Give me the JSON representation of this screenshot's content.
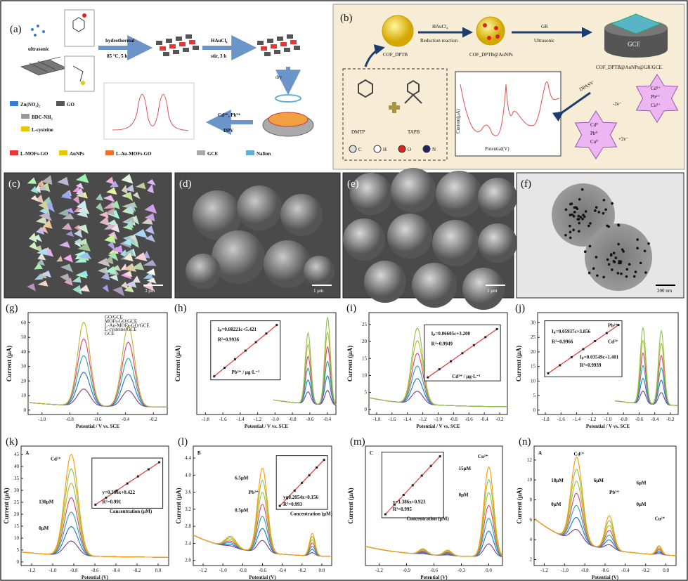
{
  "panel_a": {
    "label": "(a)",
    "ultrasonic": "ultrasonic",
    "step1": "hydrothermal",
    "step1_cond": "85 °C, 5 h",
    "step2": "HAuCl₄",
    "step2_cond": "stir, 3 h",
    "step3": "dry",
    "step4": "Cd²⁺, Pb²⁺",
    "step4_cond": "DPV",
    "legend": [
      "Zn(NO₃)₂",
      "GO",
      "BDC-NH₂",
      "L-cysteine",
      "L-MOFs-GO",
      "AuNPs",
      "L-Au-MOFs-GO",
      "GCE",
      "Nafion"
    ]
  },
  "panel_b": {
    "label": "(b)",
    "step1": "HAuCl₄",
    "step1_sub": "Reduction reaction",
    "step2": "GR",
    "step2_sub": "Ultrasonic",
    "electrode": "GCE",
    "cof": "COF_DPTB",
    "cof_au": "COF_DPTB@AuNPs",
    "cof_full": "COF_DPTB@AuNPs@GR/GCE",
    "dpasv": "DPASV",
    "monomers": [
      "DMTP",
      "TAPB"
    ],
    "atoms": [
      "C",
      "H",
      "O",
      "N"
    ],
    "ions": [
      "Cd²⁺",
      "Pb²⁺",
      "Cu²⁺"
    ],
    "ions2": [
      "Cd⁰",
      "Pb⁰",
      "Cu⁰"
    ],
    "minus": "-2e⁻",
    "plus": "+2e⁻",
    "xlabel": "Potential(V)",
    "ylabel": "Current(μA)"
  },
  "micrographs": [
    {
      "label": "(c)",
      "scale": "3 μm"
    },
    {
      "label": "(d)",
      "scale": "1 μm"
    },
    {
      "label": "(e)",
      "scale": "1 μm"
    },
    {
      "label": "(f)",
      "scale": "200 nm"
    }
  ],
  "plots": [
    {
      "label": "(g)",
      "ylabel": "Current (μA)",
      "xlabel": "Potential / V vs. SCE",
      "xticks": [
        "-1.0",
        "-0.8",
        "-0.6",
        "-0.4",
        "-0.2"
      ],
      "yticks": [
        "0",
        "10",
        "20",
        "30",
        "40",
        "50",
        "60"
      ],
      "notes": [
        "GO/GCE",
        "MOFs-GO/GCE",
        "L-Au-MOFs-GO/GCE",
        "L-cysteine/GCE",
        "GCE"
      ]
    },
    {
      "label": "(h)",
      "ylabel": "Current (μA)",
      "xlabel": "Potential / V vs. SCE",
      "xticks": [
        "-1.8",
        "-1.6",
        "-1.4",
        "-1.2",
        "-1.0",
        "-0.8",
        "-0.6",
        "-0.4"
      ],
      "yticks": [],
      "notes": [
        "Iₚ=0.08221c+5.421",
        "R²=0.9936",
        "Pb²⁺ / μg·L⁻¹"
      ]
    },
    {
      "label": "(i)",
      "ylabel": "Current (μA)",
      "xlabel": "Potential / V vs. SCE",
      "xticks": [
        "-1.8",
        "-1.6",
        "-1.4",
        "-1.2",
        "-1.0",
        "-0.8",
        "-0.6",
        "-0.4",
        "-0.2"
      ],
      "yticks": [
        "0",
        "5",
        "10",
        "15",
        "20",
        "25"
      ],
      "notes": [
        "Iₚ=0.06605c+3.200",
        "R²=0.9949",
        "Cd²⁺ / μg·L⁻¹"
      ]
    },
    {
      "label": "(j)",
      "ylabel": "Current (μA)",
      "xlabel": "Potential / V vs. SCE",
      "xticks": [
        "-1.8",
        "-1.6",
        "-1.4",
        "-1.2",
        "-1.0",
        "-0.8",
        "-0.6",
        "-0.4",
        "-0.2"
      ],
      "yticks": [
        "0",
        "5",
        "10",
        "15",
        "20",
        "25",
        "30"
      ],
      "notes": [
        "Iₚ=0.05937c+3.856",
        "R²=0.9966",
        "Iₚ=0.03549c+1.401",
        "R²=0.9939",
        "Pb²⁺",
        "Cd²⁺"
      ]
    },
    {
      "label": "(k)",
      "ylabel": "Current (μA)",
      "xlabel": "Potential (V)",
      "xticks": [
        "-1.2",
        "-1.0",
        "-0.8",
        "-0.6",
        "-0.4",
        "-0.2",
        "0.0"
      ],
      "yticks": [
        "0",
        "5",
        "10",
        "15",
        "20",
        "25",
        "30",
        "35",
        "40",
        "45"
      ],
      "notes": [
        "A",
        "Cd²⁺",
        "130μM",
        "0μM",
        "y=0.306x+0.422",
        "R²=0.991",
        "Concentration (μM)"
      ]
    },
    {
      "label": "(l)",
      "ylabel": "Current (μA)",
      "xlabel": "Potential (V)",
      "xticks": [
        "-1.2",
        "-1.0",
        "-0.8",
        "-0.6",
        "-0.4",
        "-0.2",
        "0.0"
      ],
      "yticks": [
        "2.0",
        "2.4",
        "2.8",
        "3.2",
        "3.6",
        "4.0",
        "4.4"
      ],
      "notes": [
        "B",
        "6.5μM",
        "0.5μM",
        "Pb²⁺",
        "y=0.2054x+0.156",
        "R²=0.993",
        "Concentration (μM)"
      ]
    },
    {
      "label": "(m)",
      "ylabel": "Current (μA)",
      "xlabel": "Potential (V)",
      "xticks": [
        "-1.2",
        "-0.9",
        "-0.6",
        "-0.3",
        "0.0"
      ],
      "yticks": [],
      "notes": [
        "C",
        "Cu²⁺",
        "15μM",
        "0μM",
        "y=1.386x+0.923",
        "R²=0.995",
        "Concentration (μM)"
      ]
    },
    {
      "label": "(n)",
      "ylabel": "Current (μA)",
      "xlabel": "Potential (V)",
      "xticks": [
        "-1.2",
        "-1.0",
        "-0.8",
        "-0.6",
        "-0.4",
        "-0.2",
        "0.0"
      ],
      "yticks": [
        "2",
        "4",
        "6",
        "8",
        "10",
        "12"
      ],
      "notes": [
        "A",
        "Cd²⁺",
        "18μM",
        "0μM",
        "6μM",
        "Pb²⁺",
        "6μM",
        "0μM",
        "Cu²⁺"
      ]
    }
  ]
}
